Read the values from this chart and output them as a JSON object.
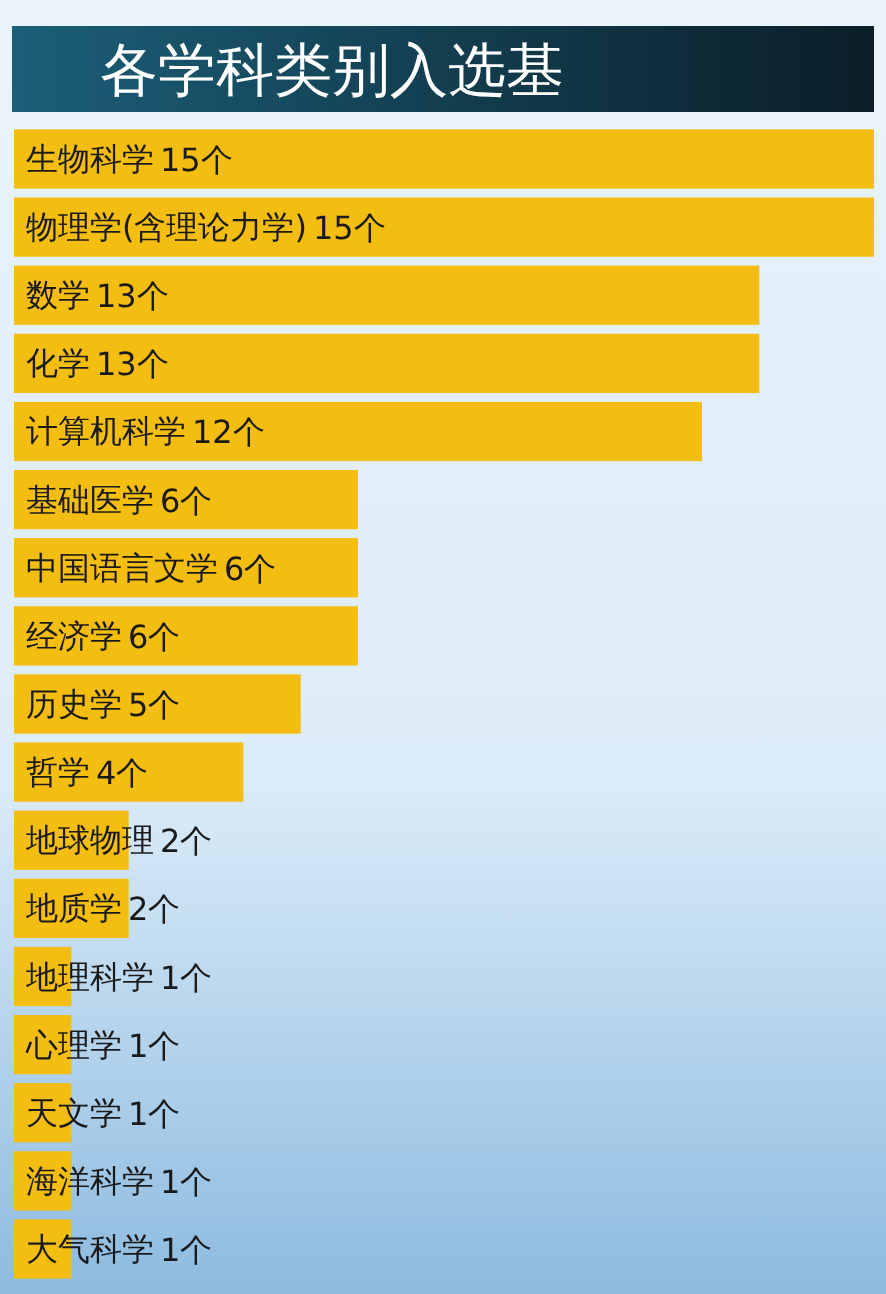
{
  "chart_data": {
    "type": "bar",
    "orientation": "horizontal",
    "title": "各学科类别入选基",
    "categories": [
      "生物科学",
      "物理学(含理论力学)",
      "数学",
      "化学",
      "计算机科学",
      "基础医学",
      "中国语言文学",
      "经济学",
      "历史学",
      "哲学",
      "地球物理",
      "地质学",
      "地理科学",
      "心理学",
      "天文学",
      "海洋科学",
      "大气科学"
    ],
    "values": [
      15,
      15,
      13,
      13,
      12,
      6,
      6,
      6,
      5,
      4,
      2,
      2,
      1,
      1,
      1,
      1,
      1
    ],
    "value_labels": [
      "15个",
      "15个",
      "13个",
      "13个",
      "12个",
      "6个",
      "6个",
      "6个",
      "5个",
      "4个",
      "2个",
      "2个",
      "1个",
      "1个",
      "1个",
      "1个",
      "1个"
    ],
    "color": "#f4bd12"
  }
}
